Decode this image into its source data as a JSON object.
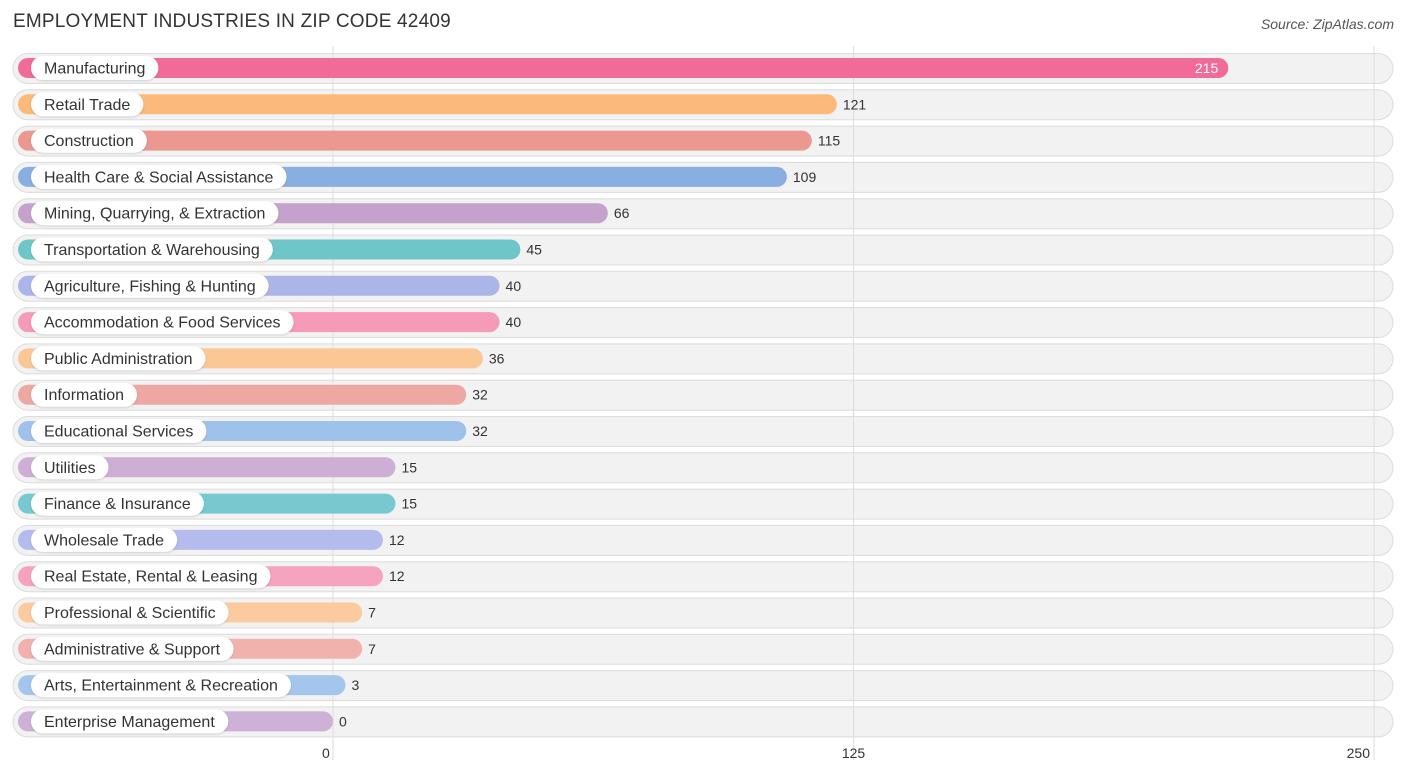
{
  "chart_data": {
    "type": "bar",
    "orientation": "horizontal",
    "title": "EMPLOYMENT INDUSTRIES IN ZIP CODE 42409",
    "source": "Source: ZipAtlas.com",
    "xlabel": "",
    "ylabel": "",
    "xlim": [
      0,
      250
    ],
    "ticks": [
      0,
      125,
      250
    ],
    "tick_labels": [
      "0",
      "125",
      "250"
    ],
    "categories": [
      "Manufacturing",
      "Retail Trade",
      "Construction",
      "Health Care & Social Assistance",
      "Mining, Quarrying, & Extraction",
      "Transportation & Warehousing",
      "Agriculture, Fishing & Hunting",
      "Accommodation & Food Services",
      "Public Administration",
      "Information",
      "Educational Services",
      "Utilities",
      "Finance & Insurance",
      "Wholesale Trade",
      "Real Estate, Rental & Leasing",
      "Professional & Scientific",
      "Administrative & Support",
      "Arts, Entertainment & Recreation",
      "Enterprise Management"
    ],
    "values": [
      215,
      121,
      115,
      109,
      66,
      45,
      40,
      40,
      36,
      32,
      32,
      15,
      15,
      12,
      12,
      7,
      7,
      3,
      0
    ],
    "value_labels": [
      "215",
      "121",
      "115",
      "109",
      "66",
      "45",
      "40",
      "40",
      "36",
      "32",
      "32",
      "15",
      "15",
      "12",
      "12",
      "7",
      "7",
      "3",
      "0"
    ],
    "colors": [
      "#f06b97",
      "#fbb97b",
      "#eb9891",
      "#88aee2",
      "#c4a2cb",
      "#6fc6c8",
      "#acb5e8",
      "#f59ab7",
      "#fbc795",
      "#eda8a3",
      "#9fc2ea",
      "#cdaed5",
      "#77c9cf",
      "#b5bbec",
      "#f5a3bf",
      "#fbcb9f",
      "#f1b1ad",
      "#a4c6ed",
      "#cdb1d7"
    ]
  }
}
